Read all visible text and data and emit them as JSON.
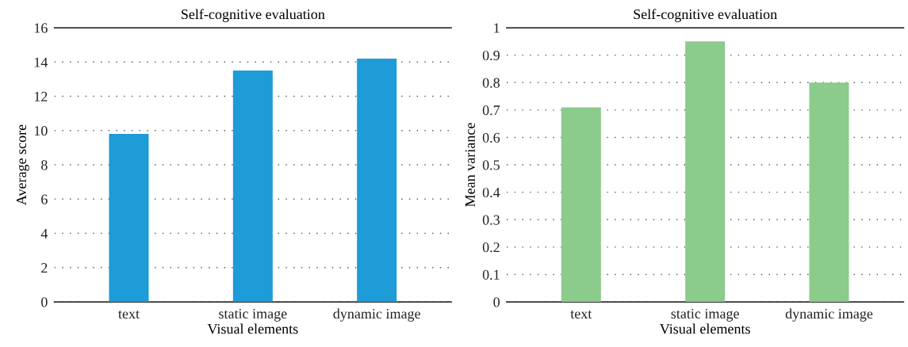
{
  "chart_data": [
    {
      "type": "bar",
      "title": "Self-cognitive evaluation",
      "xlabel": "Visual elements",
      "ylabel": "Average score",
      "categories": [
        "text",
        "static image",
        "dynamic image"
      ],
      "values": [
        9.8,
        13.5,
        14.2
      ],
      "color": "#1e9cd7",
      "ylim": [
        0,
        16
      ],
      "yticks": [
        0,
        2,
        4,
        6,
        8,
        10,
        12,
        14,
        16
      ],
      "grid": "y"
    },
    {
      "type": "bar",
      "title": "Self-cognitive evaluation",
      "xlabel": "Visual elements",
      "ylabel": "Mean variance",
      "categories": [
        "text",
        "static image",
        "dynamic image"
      ],
      "values": [
        0.71,
        0.95,
        0.8
      ],
      "color": "#8bcb8b",
      "ylim": [
        0,
        1
      ],
      "yticks": [
        0,
        0.1,
        0.2,
        0.3,
        0.4,
        0.5,
        0.6,
        0.7,
        0.8,
        0.9,
        1
      ],
      "grid": "y"
    }
  ]
}
